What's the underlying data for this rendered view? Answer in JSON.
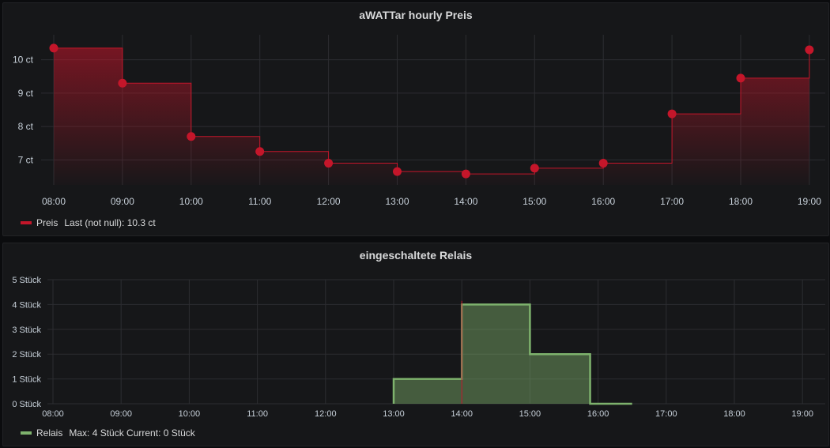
{
  "chart_data": [
    {
      "type": "line",
      "title": "aWATTar hourly Preis",
      "x": [
        "08:00",
        "09:00",
        "10:00",
        "11:00",
        "12:00",
        "13:00",
        "14:00",
        "15:00",
        "16:00",
        "17:00",
        "18:00",
        "19:00"
      ],
      "x_ticks": [
        "08:00",
        "09:00",
        "10:00",
        "11:00",
        "12:00",
        "13:00",
        "14:00",
        "15:00",
        "16:00",
        "17:00",
        "18:00",
        "19:00"
      ],
      "y_ticks": [
        "7 ct",
        "8 ct",
        "9 ct",
        "10 ct"
      ],
      "y_tick_values": [
        7,
        8,
        9,
        10
      ],
      "ylim": [
        6.25,
        10.75
      ],
      "step": true,
      "points": true,
      "series": [
        {
          "name": "Preis",
          "values": [
            10.35,
            9.3,
            7.7,
            7.25,
            6.9,
            6.65,
            6.58,
            6.75,
            6.9,
            8.38,
            9.45,
            10.3
          ]
        }
      ],
      "legend": {
        "name": "Preis",
        "stats": "Last (not null): 10.3 ct"
      },
      "color": "#c4162a",
      "grid": true
    },
    {
      "type": "area",
      "title": "eingeschaltete Relais",
      "x_ticks": [
        "08:00",
        "09:00",
        "10:00",
        "11:00",
        "12:00",
        "13:00",
        "14:00",
        "15:00",
        "16:00",
        "17:00",
        "18:00",
        "19:00"
      ],
      "y_ticks": [
        "0 Stück",
        "1 Stück",
        "2 Stück",
        "3 Stück",
        "4 Stück",
        "5 Stück"
      ],
      "y_tick_values": [
        0,
        1,
        2,
        3,
        4,
        5
      ],
      "ylim": [
        0,
        5
      ],
      "step": true,
      "series": [
        {
          "name": "Relais",
          "x": [
            "13:00",
            "14:00",
            "15:00",
            "15:53",
            "16:30"
          ],
          "values": [
            1,
            4,
            2,
            0,
            0
          ]
        }
      ],
      "legend": {
        "name": "Relais",
        "stats": "Max: 4 Stück  Current: 0 Stück"
      },
      "color": "#7eb26d",
      "grid": true
    }
  ]
}
